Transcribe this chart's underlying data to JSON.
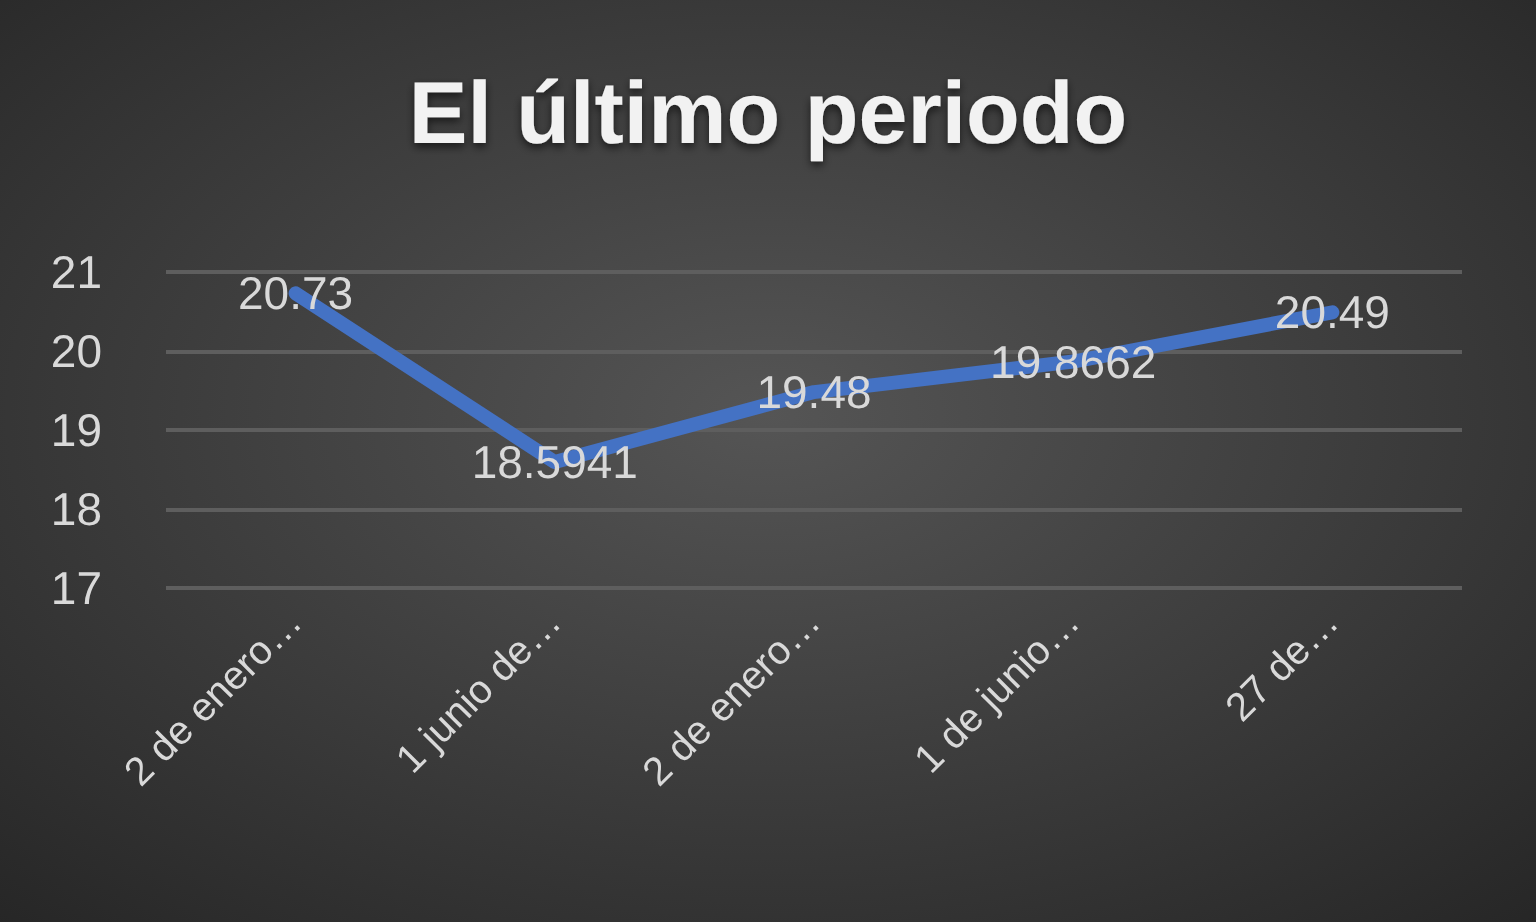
{
  "chart_data": {
    "type": "line",
    "title": "El último periodo",
    "categories": [
      "2 de enero…",
      "1 junio de…",
      "2 de enero…",
      "1 de junio…",
      "27 de…"
    ],
    "series": [
      {
        "color": "#4472c4",
        "values": [
          20.73,
          18.5941,
          19.48,
          19.8662,
          20.49
        ]
      }
    ],
    "ylim": [
      17,
      21
    ],
    "yticks": [
      17,
      18,
      19,
      20,
      21
    ],
    "grid": "y",
    "data_labels": true
  }
}
